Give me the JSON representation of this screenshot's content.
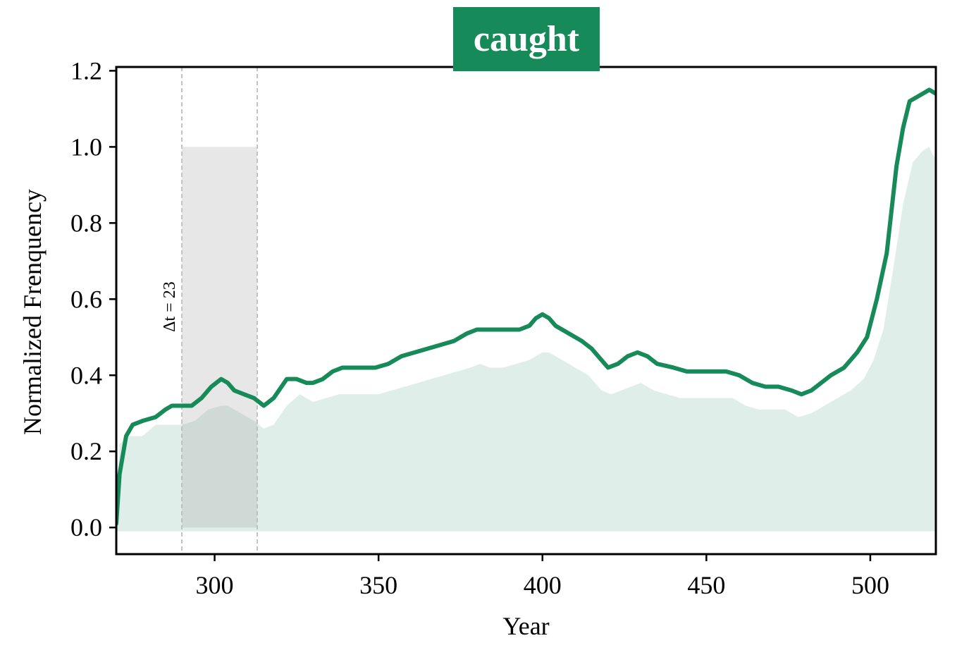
{
  "chart_data": {
    "type": "line",
    "title": "caught",
    "xlabel": "Year",
    "ylabel": "Normalized Frenquency",
    "xlim": [
      270,
      520
    ],
    "ylim": [
      -0.07,
      1.21
    ],
    "x_ticks": [
      300,
      350,
      400,
      450,
      500
    ],
    "y_ticks": [
      0.0,
      0.2,
      0.4,
      0.6,
      0.8,
      1.0,
      1.2
    ],
    "y_tick_labels": [
      "0.0",
      "0.2",
      "0.4",
      "0.6",
      "0.8",
      "1.0",
      "1.2"
    ],
    "grid": false,
    "legend": "none",
    "colors": {
      "line": "#178a5a",
      "fill": "#dfeee8",
      "title_bg": "#178a5a",
      "highlight": "#d8d8d8"
    },
    "highlight_window": {
      "x_start": 290,
      "x_end": 313,
      "y_top": 1.0,
      "label": "Δt = 23"
    },
    "series": [
      {
        "kind": "line",
        "x": [
          270,
          271,
          273,
          275,
          278,
          282,
          285,
          287,
          290,
          293,
          296,
          299,
          302,
          304,
          306,
          309,
          312,
          315,
          318,
          322,
          325,
          328,
          330,
          333,
          336,
          339,
          342,
          345,
          349,
          353,
          357,
          361,
          365,
          369,
          373,
          377,
          380,
          383,
          386,
          389,
          393,
          396,
          398,
          400,
          402,
          404,
          408,
          412,
          415,
          418,
          420,
          423,
          426,
          429,
          432,
          435,
          440,
          444,
          448,
          452,
          456,
          460,
          464,
          468,
          472,
          476,
          479,
          482,
          485,
          488,
          492,
          496,
          499,
          502,
          505,
          508,
          510,
          512,
          514,
          516,
          518,
          520
        ],
        "y": [
          0.01,
          0.14,
          0.24,
          0.27,
          0.28,
          0.29,
          0.31,
          0.32,
          0.32,
          0.32,
          0.34,
          0.37,
          0.39,
          0.38,
          0.36,
          0.35,
          0.34,
          0.32,
          0.34,
          0.39,
          0.39,
          0.38,
          0.38,
          0.39,
          0.41,
          0.42,
          0.42,
          0.42,
          0.42,
          0.43,
          0.45,
          0.46,
          0.47,
          0.48,
          0.49,
          0.51,
          0.52,
          0.52,
          0.52,
          0.52,
          0.52,
          0.53,
          0.55,
          0.56,
          0.55,
          0.53,
          0.51,
          0.49,
          0.47,
          0.44,
          0.42,
          0.43,
          0.45,
          0.46,
          0.45,
          0.43,
          0.42,
          0.41,
          0.41,
          0.41,
          0.41,
          0.4,
          0.38,
          0.37,
          0.37,
          0.36,
          0.35,
          0.36,
          0.38,
          0.4,
          0.42,
          0.46,
          0.5,
          0.6,
          0.72,
          0.95,
          1.05,
          1.12,
          1.13,
          1.14,
          1.15,
          1.14
        ]
      },
      {
        "kind": "area",
        "x": [
          270,
          271,
          274,
          278,
          282,
          286,
          290,
          294,
          298,
          302,
          304,
          308,
          312,
          315,
          318,
          322,
          326,
          330,
          334,
          338,
          342,
          346,
          350,
          354,
          358,
          362,
          366,
          370,
          374,
          378,
          381,
          384,
          388,
          392,
          396,
          398,
          400,
          402,
          406,
          410,
          414,
          418,
          421,
          424,
          427,
          430,
          434,
          438,
          442,
          446,
          450,
          454,
          458,
          462,
          466,
          470,
          474,
          478,
          482,
          486,
          490,
          494,
          498,
          501,
          504,
          507,
          510,
          513,
          516,
          518,
          519,
          520
        ],
        "y": [
          0.0,
          0.22,
          0.24,
          0.24,
          0.27,
          0.27,
          0.27,
          0.28,
          0.31,
          0.32,
          0.32,
          0.3,
          0.28,
          0.26,
          0.27,
          0.32,
          0.35,
          0.33,
          0.34,
          0.35,
          0.35,
          0.35,
          0.35,
          0.36,
          0.37,
          0.38,
          0.39,
          0.4,
          0.41,
          0.42,
          0.43,
          0.42,
          0.42,
          0.43,
          0.44,
          0.45,
          0.46,
          0.46,
          0.44,
          0.42,
          0.4,
          0.36,
          0.35,
          0.36,
          0.37,
          0.38,
          0.36,
          0.35,
          0.34,
          0.34,
          0.34,
          0.34,
          0.34,
          0.32,
          0.31,
          0.31,
          0.31,
          0.29,
          0.3,
          0.32,
          0.34,
          0.36,
          0.39,
          0.44,
          0.52,
          0.68,
          0.85,
          0.96,
          0.99,
          1.0,
          0.98,
          0.97
        ]
      }
    ]
  }
}
